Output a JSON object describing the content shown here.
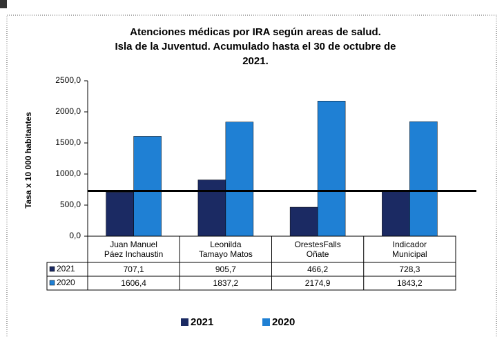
{
  "chart_data": {
    "type": "bar",
    "title": [
      "Atenciones médicas por IRA según areas de salud.",
      "Isla de la Juventud. Acumulado hasta el 30 de octubre de",
      "2021."
    ],
    "y_label": "Tasa x 10 000 habitantes",
    "categories": [
      "Juan Manuel\nPáez Inchaustin",
      "Leonilda\nTamayo Matos",
      "OrestesFalls\nOñate",
      "Indicador\nMunicipal"
    ],
    "series": [
      {
        "name": "2021",
        "color": "#1b2a63",
        "values": [
          707.1,
          905.7,
          466.2,
          728.3
        ],
        "value_labels": [
          "707,1",
          "905,7",
          "466,2",
          "728,3"
        ]
      },
      {
        "name": "2020",
        "color": "#1f80d4",
        "values": [
          1606.4,
          1837.2,
          2174.9,
          1843.2
        ],
        "value_labels": [
          "1606,4",
          "1837,2",
          "2174,9",
          "1843,2"
        ]
      }
    ],
    "reference_line": 728.3,
    "ylim": [
      0,
      2500
    ],
    "yticks": [
      {
        "value": 0,
        "label": "0,0"
      },
      {
        "value": 500,
        "label": "500,0"
      },
      {
        "value": 1000,
        "label": "1000,0"
      },
      {
        "value": 1500,
        "label": "1500,0"
      },
      {
        "value": 2000,
        "label": "2000,0"
      },
      {
        "value": 2500,
        "label": "2500,0"
      }
    ],
    "legend": "bottom"
  }
}
